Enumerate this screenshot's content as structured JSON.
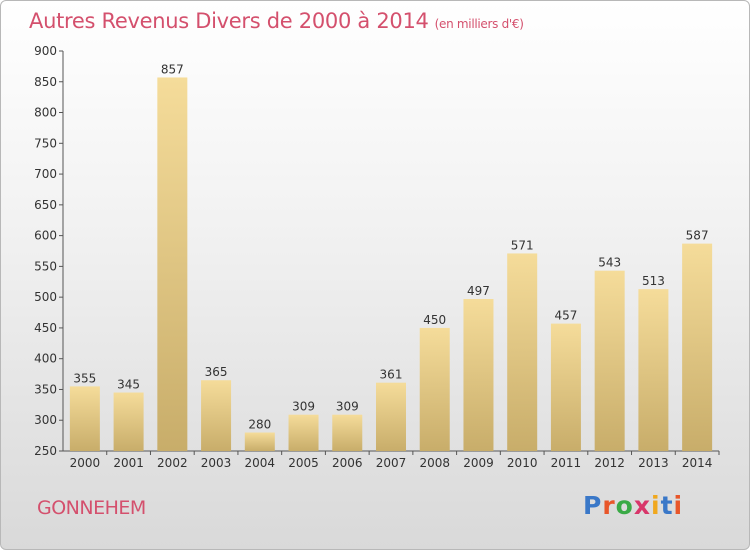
{
  "title": "Autres Revenus Divers de 2000 à 2014",
  "title_unit": "(en milliers d'€)",
  "commune": "GONNEHEM",
  "logo": {
    "text": "Proxiti",
    "letter_colors": [
      "#3a78c8",
      "#e8562a",
      "#3aaa46",
      "#d8366a",
      "#f0a81e",
      "#3a78c8",
      "#e8562a"
    ]
  },
  "colors": {
    "title": "#d4506d",
    "bar_light": "#f5dc9a",
    "bar_dark": "#c8ad6a"
  },
  "chart_data": {
    "type": "bar",
    "title": "Autres Revenus Divers de 2000 à 2014",
    "categories": [
      "2000",
      "2001",
      "2002",
      "2003",
      "2004",
      "2005",
      "2006",
      "2007",
      "2008",
      "2009",
      "2010",
      "2011",
      "2012",
      "2013",
      "2014"
    ],
    "values": [
      355,
      345,
      857,
      365,
      280,
      309,
      309,
      361,
      450,
      497,
      571,
      457,
      543,
      513,
      587
    ],
    "xlabel": "",
    "ylabel": "",
    "ylim": [
      250,
      900
    ],
    "yticks": [
      250,
      300,
      350,
      400,
      450,
      500,
      550,
      600,
      650,
      700,
      750,
      800,
      850,
      900
    ],
    "grid": false,
    "legend": "none"
  }
}
